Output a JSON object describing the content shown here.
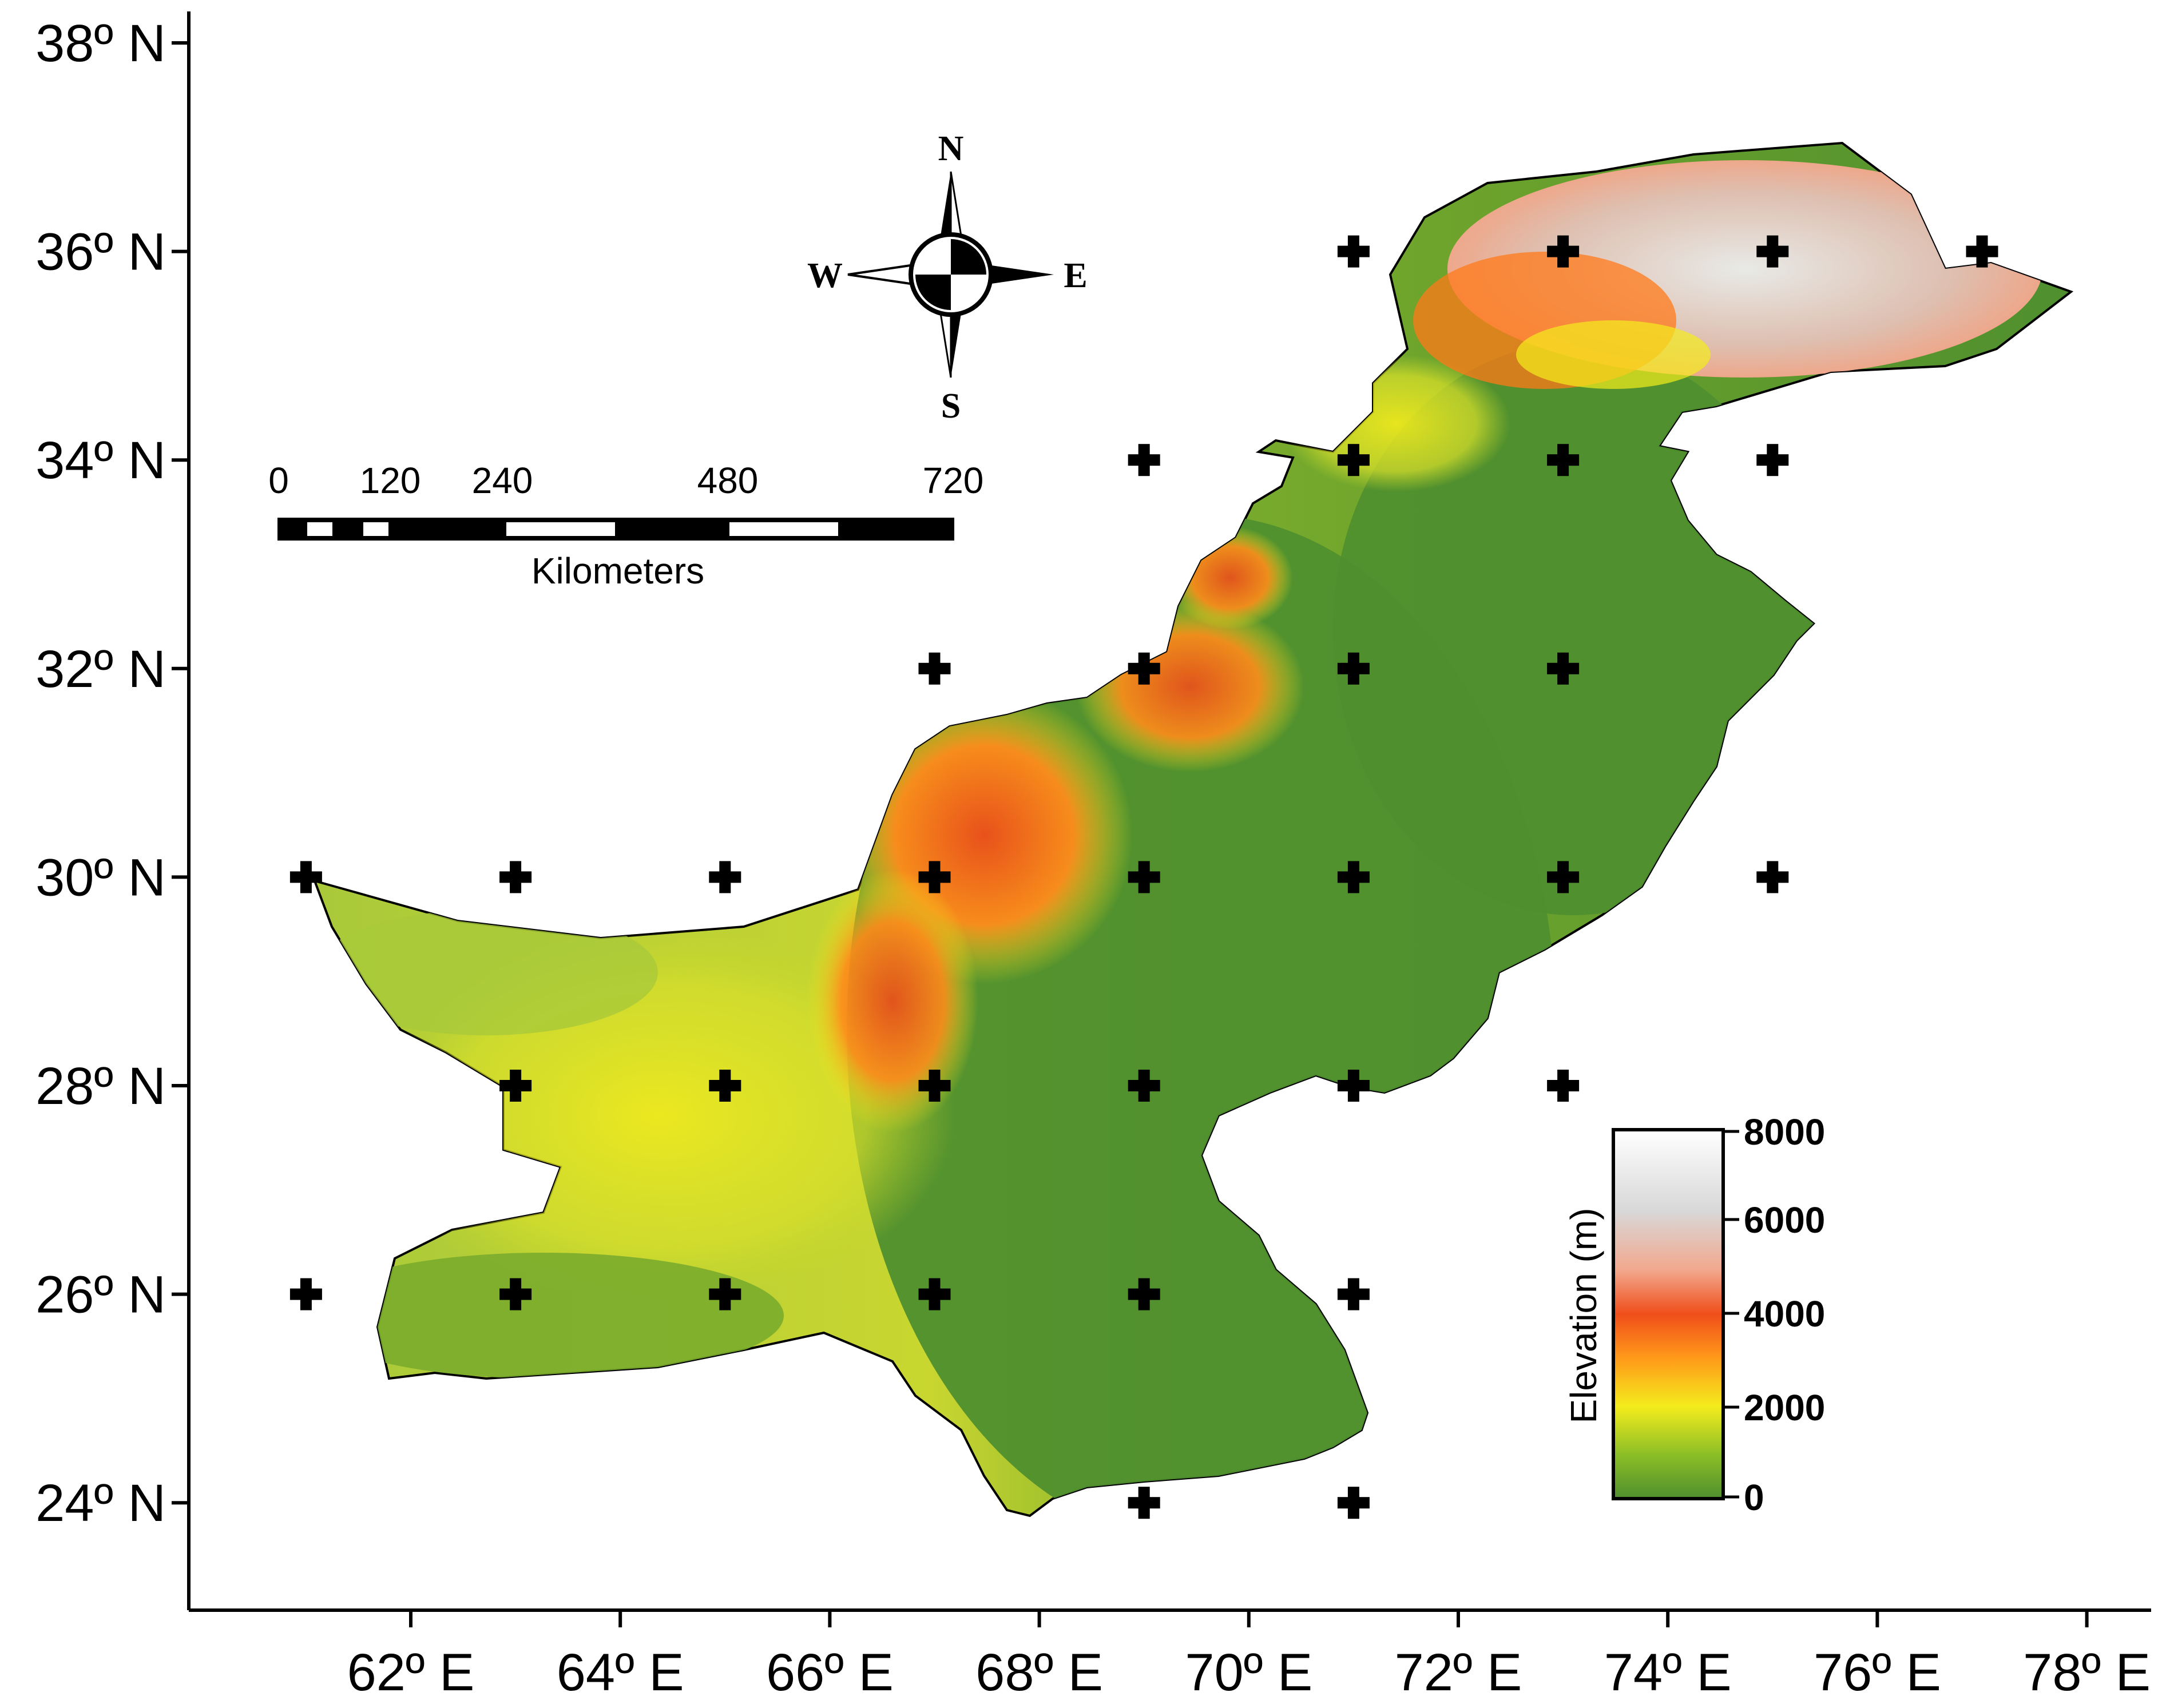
{
  "colors": {
    "lowland_green": "#4f8f2e",
    "mid_green": "#7fb32c",
    "yellow_green": "#c7d92a",
    "yellow": "#f4ec1c",
    "orange": "#ff7a1a",
    "red_orange": "#f04e1a",
    "salmon": "#f2a88e",
    "light_gray": "#d8d8d8",
    "white": "#ffffff"
  },
  "axes": {
    "lat_ticks": [
      "38º N",
      "36º N",
      "34º N",
      "32º N",
      "30º N",
      "28º N",
      "26º N",
      "24º N"
    ],
    "lon_ticks": [
      "62º E",
      "64º E",
      "66º E",
      "68º E",
      "70º E",
      "72º E",
      "74º E",
      "76º E",
      "78º E"
    ]
  },
  "compass": {
    "north": "N",
    "south": "S",
    "east": "E",
    "west": "W"
  },
  "scale_bar": {
    "tick_labels": [
      "0",
      "120",
      "240",
      "480",
      "720"
    ],
    "unit": "Kilometers"
  },
  "legend": {
    "title": "Elevation (m)",
    "tick_labels": [
      "8000",
      "6000",
      "4000",
      "2000",
      "0"
    ],
    "icon": "elevation-colorbar"
  },
  "grid_markers": {
    "icon": "plus-marker-icon",
    "points": [
      {
        "lon": 71,
        "lat": 36
      },
      {
        "lon": 73,
        "lat": 36
      },
      {
        "lon": 75,
        "lat": 36
      },
      {
        "lon": 77,
        "lat": 36
      },
      {
        "lon": 69,
        "lat": 34
      },
      {
        "lon": 71,
        "lat": 34
      },
      {
        "lon": 73,
        "lat": 34
      },
      {
        "lon": 75,
        "lat": 34
      },
      {
        "lon": 67,
        "lat": 32
      },
      {
        "lon": 69,
        "lat": 32
      },
      {
        "lon": 71,
        "lat": 32
      },
      {
        "lon": 73,
        "lat": 32
      },
      {
        "lon": 61,
        "lat": 30
      },
      {
        "lon": 63,
        "lat": 30
      },
      {
        "lon": 65,
        "lat": 30
      },
      {
        "lon": 67,
        "lat": 30
      },
      {
        "lon": 69,
        "lat": 30
      },
      {
        "lon": 71,
        "lat": 30
      },
      {
        "lon": 73,
        "lat": 30
      },
      {
        "lon": 75,
        "lat": 30
      },
      {
        "lon": 63,
        "lat": 28
      },
      {
        "lon": 65,
        "lat": 28
      },
      {
        "lon": 67,
        "lat": 28
      },
      {
        "lon": 69,
        "lat": 28
      },
      {
        "lon": 71,
        "lat": 28
      },
      {
        "lon": 73,
        "lat": 28
      },
      {
        "lon": 61,
        "lat": 26
      },
      {
        "lon": 63,
        "lat": 26
      },
      {
        "lon": 65,
        "lat": 26
      },
      {
        "lon": 67,
        "lat": 26
      },
      {
        "lon": 69,
        "lat": 26
      },
      {
        "lon": 71,
        "lat": 26
      },
      {
        "lon": 69,
        "lat": 24
      },
      {
        "lon": 71,
        "lat": 24
      }
    ]
  }
}
